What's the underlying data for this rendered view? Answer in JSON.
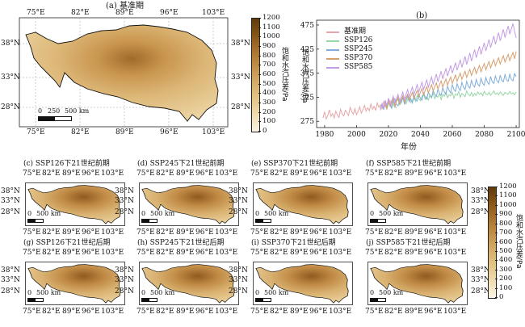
{
  "map_main": {
    "title": "(a) 基准期",
    "lon_ticks": [
      "75°E",
      "82°E",
      "89°E",
      "96°E",
      "103°E"
    ],
    "lat_ticks": [
      "38°N",
      "33°N",
      "28°N"
    ],
    "scale_labels": [
      "0",
      "250",
      "500 km"
    ]
  },
  "colorbar": {
    "label": "饱和水汽压差/Pa",
    "ticks": [
      "1200",
      "1100",
      "1000",
      "900",
      "800",
      "700",
      "600",
      "500",
      "400",
      "300",
      "200",
      "100",
      "0"
    ],
    "colors": [
      "#fbf5e8",
      "#f0ddb0",
      "#e2c384",
      "#d3a965",
      "#bf8b43",
      "#a26c28",
      "#805013",
      "#603b0c"
    ]
  },
  "small_maps": {
    "titles": [
      "(c) SSP126下21世纪前期",
      "(d) SSP245下21世纪前期",
      "(e) SSP370下21世纪前期",
      "(f) SSP585下21世纪前期",
      "(g) SSP126下21世纪后期",
      "(h) SSP245下21世纪后期",
      "(i) SSP370下21世纪后期",
      "(j) SSP585下21世纪后期"
    ],
    "lon_ticks": [
      "75°E",
      "82°E",
      "89°E",
      "96°E",
      "103°E"
    ],
    "lat_ticks": [
      "38°N",
      "33°N",
      "28°N"
    ],
    "scale_labels": [
      "0",
      "500 km"
    ]
  },
  "chart_data": {
    "type": "line",
    "title": "(b)",
    "xlabel": "年份",
    "ylabel": "饱和水汽压差/Pa",
    "xlim": [
      1975,
      2102
    ],
    "ylim": [
      262,
      485
    ],
    "x_ticks": [
      1980,
      2000,
      2020,
      2040,
      2060,
      2080,
      2100
    ],
    "y_ticks": [
      275,
      325,
      375,
      425,
      475
    ],
    "legend_position": "top-left",
    "series": [
      {
        "name": "基准期",
        "color": "#e8a6a6",
        "x_start": 1979,
        "values": [
          282,
          295,
          280,
          287,
          299,
          285,
          291,
          282,
          296,
          288,
          283,
          300,
          290,
          286,
          298,
          293,
          287,
          304,
          295,
          290,
          301,
          289,
          296,
          305,
          292,
          299,
          308,
          296,
          303,
          297,
          311,
          300,
          306,
          298,
          313,
          304,
          309,
          301,
          316,
          307,
          300,
          312,
          318,
          306,
          314,
          310,
          302
        ]
      },
      {
        "name": "SSP126",
        "color": "#97d6a6",
        "x_start": 2015,
        "values": [
          302,
          309,
          304,
          312,
          300,
          314,
          306,
          318,
          310,
          304,
          316,
          321,
          309,
          313,
          323,
          317,
          311,
          320,
          326,
          314,
          319,
          324,
          316,
          329,
          322,
          318,
          327,
          332,
          321,
          326,
          319,
          330,
          324,
          334,
          322,
          328,
          325,
          333,
          320,
          331,
          327,
          336,
          324,
          330,
          328,
          335,
          323,
          332,
          329,
          337,
          325,
          333,
          330,
          326,
          338,
          331,
          328,
          335,
          327,
          333,
          329,
          336,
          331,
          334,
          328,
          337,
          332,
          330,
          335,
          329,
          333,
          338,
          331,
          334,
          330,
          336,
          332,
          329,
          335,
          333,
          331,
          337,
          332,
          334,
          330,
          336
        ]
      },
      {
        "name": "SSP245",
        "color": "#7faedc",
        "x_start": 2015,
        "values": [
          303,
          311,
          299,
          314,
          306,
          318,
          309,
          302,
          316,
          322,
          310,
          307,
          320,
          314,
          325,
          311,
          318,
          327,
          316,
          322,
          313,
          329,
          320,
          317,
          331,
          323,
          319,
          334,
          326,
          321,
          336,
          328,
          324,
          339,
          331,
          327,
          342,
          333,
          329,
          345,
          336,
          331,
          348,
          339,
          334,
          351,
          341,
          337,
          353,
          344,
          339,
          356,
          346,
          341,
          358,
          348,
          344,
          360,
          350,
          346,
          362,
          352,
          348,
          364,
          354,
          350,
          366,
          356,
          352,
          368,
          357,
          354,
          369,
          359,
          355,
          371,
          360,
          357,
          372,
          361,
          358,
          373,
          362,
          359,
          374,
          368
        ]
      },
      {
        "name": "SSP370",
        "color": "#d79f6e",
        "x_start": 2015,
        "values": [
          300,
          310,
          304,
          315,
          301,
          318,
          308,
          312,
          322,
          306,
          317,
          325,
          311,
          320,
          328,
          315,
          324,
          331,
          319,
          327,
          335,
          322,
          331,
          339,
          326,
          335,
          343,
          330,
          339,
          347,
          334,
          343,
          351,
          338,
          347,
          355,
          342,
          351,
          359,
          346,
          355,
          363,
          350,
          359,
          367,
          354,
          363,
          371,
          358,
          367,
          375,
          362,
          371,
          379,
          366,
          375,
          383,
          370,
          379,
          387,
          374,
          383,
          391,
          378,
          387,
          395,
          382,
          391,
          399,
          386,
          395,
          403,
          390,
          399,
          407,
          394,
          403,
          411,
          398,
          406,
          414,
          401,
          410,
          418,
          405,
          420
        ]
      },
      {
        "name": "SSP585",
        "color": "#c39be6",
        "x_start": 2015,
        "values": [
          298,
          312,
          303,
          319,
          307,
          323,
          310,
          316,
          327,
          313,
          321,
          331,
          317,
          326,
          336,
          321,
          331,
          341,
          326,
          336,
          346,
          331,
          341,
          351,
          336,
          346,
          356,
          341,
          351,
          361,
          346,
          357,
          367,
          352,
          362,
          373,
          357,
          368,
          379,
          363,
          374,
          385,
          369,
          380,
          391,
          375,
          386,
          397,
          381,
          392,
          403,
          387,
          398,
          410,
          393,
          405,
          417,
          400,
          412,
          424,
          407,
          419,
          431,
          414,
          426,
          438,
          421,
          433,
          445,
          428,
          440,
          452,
          435,
          447,
          459,
          442,
          454,
          466,
          449,
          461,
          473,
          456,
          467,
          478,
          462,
          448
        ]
      }
    ]
  }
}
